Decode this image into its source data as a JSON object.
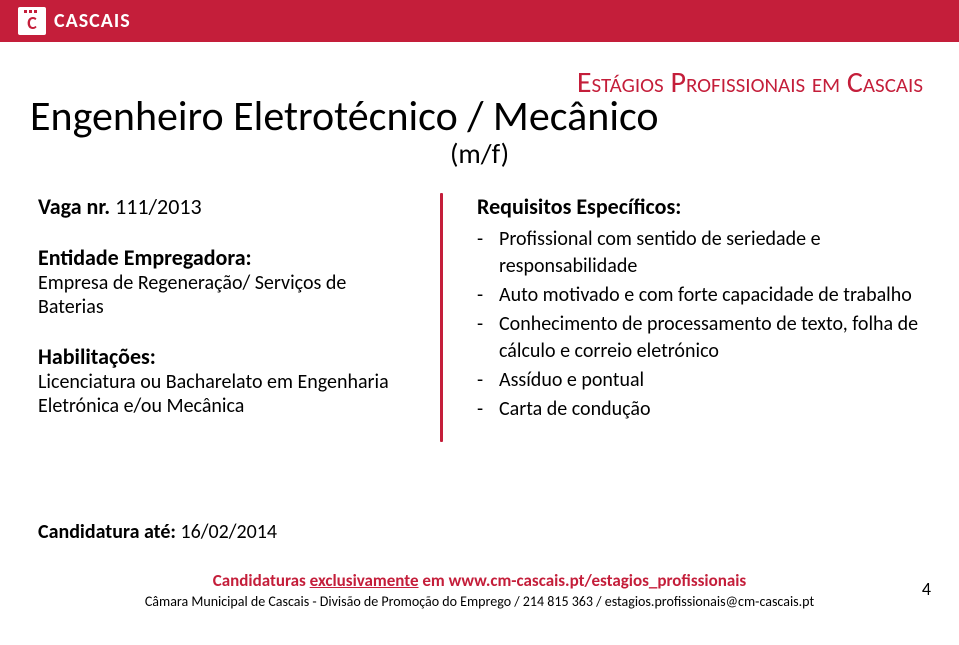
{
  "colors": {
    "brand_red": "#c41e3a",
    "text": "#000000",
    "bg": "#ffffff"
  },
  "fonts": {
    "program_title_size": 30,
    "job_title_size": 42,
    "job_subtitle_size": 28,
    "section_label_size": 22,
    "body_size": 20,
    "footer_link_size": 17,
    "footer_sub_size": 14,
    "page_num_size": 18
  },
  "header": {
    "logo_letter": "C",
    "logo_text": "CASCAIS"
  },
  "program_title": "Estágios Profissionais em Cascais",
  "job": {
    "title": "Engenheiro Eletrotécnico / Mecânico",
    "subtitle": "(m/f)"
  },
  "left": {
    "vaga_label": "Vaga nr.",
    "vaga_value": " 111/2013",
    "entidade_label": "Entidade Empregadora:",
    "entidade_value": "Empresa de Regeneração/ Serviços de Baterias",
    "habilitacoes_label": "Habilitações:",
    "habilitacoes_value": "Licenciatura ou Bacharelato em Engenharia Eletrónica e/ou Mecânica"
  },
  "right": {
    "requisitos_label": "Requisitos Específicos:",
    "items": [
      "Profissional com sentido de seriedade e responsabilidade",
      "Auto motivado e com forte capacidade de trabalho",
      "Conhecimento de processamento de texto, folha de cálculo e correio eletrónico",
      "Assíduo e pontual",
      "Carta de condução"
    ]
  },
  "candidature": {
    "label": "Candidatura até: ",
    "date": "16/02/2014"
  },
  "footer": {
    "link_prefix": "Candidaturas ",
    "link_underlined": "exclusivamente",
    "link_mid": " em ",
    "link_url": "www.cm-cascais.pt/estagios_profissionais",
    "sub": "Câmara Municipal de Cascais - Divisão de Promoção do Emprego / 214 815 363 / estagios.profissionais@cm-cascais.pt",
    "page_number": "4"
  }
}
